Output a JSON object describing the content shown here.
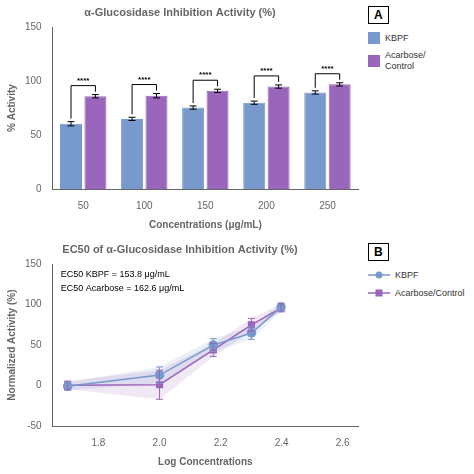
{
  "chart_data": [
    {
      "type": "bar",
      "title": "α-Glucosidase Inhibition Activity (%)",
      "xlabel": "Concentrations (μg/mL)",
      "ylabel": "% Activity",
      "categories": [
        "50",
        "100",
        "150",
        "200",
        "250"
      ],
      "series": [
        {
          "name": "KBPF",
          "color": "#7799CC",
          "values": [
            60.5,
            65.0,
            75.5,
            80.0,
            89.5
          ],
          "errors": [
            2.0,
            1.5,
            1.5,
            1.5,
            1.5
          ]
        },
        {
          "name": "Acarbose/\nControl",
          "color": "#9966BB",
          "values": [
            86.0,
            86.5,
            91.0,
            95.0,
            97.0
          ],
          "errors": [
            1.5,
            2.0,
            1.5,
            1.5,
            1.5
          ]
        }
      ],
      "significance": [
        "****",
        "****",
        "****",
        "****",
        "****"
      ],
      "panel_label": "A",
      "ylim": [
        0,
        150
      ],
      "yticks": [
        0,
        50,
        100,
        150
      ],
      "grid": false,
      "legend": "upper right"
    },
    {
      "type": "line",
      "title": "EC50 of α-Glucosidase Inhibition Activity (%)",
      "xlabel": "Log Concentrations",
      "ylabel": "Normalized Activity (%)",
      "x": [
        1.699,
        2.0,
        2.176,
        2.301,
        2.398
      ],
      "series": [
        {
          "name": "KBPF",
          "color": "#7799CC",
          "marker": "circle",
          "values": [
            -1.0,
            13.0,
            50.0,
            65.0,
            97.0
          ],
          "errors": [
            5.0,
            10.0,
            8.0,
            8.0,
            5.0
          ]
        },
        {
          "name": "Acarbose/Control",
          "color": "#9966BB",
          "marker": "square",
          "values": [
            0.5,
            1.0,
            44.0,
            75.0,
            96.0
          ],
          "errors": [
            5.0,
            18.0,
            8.0,
            8.0,
            5.0
          ]
        }
      ],
      "annotations": [
        "EC50 KBPF = 153.8 μg/mL",
        "EC50 Acarbose = 162.6 μg/mL"
      ],
      "panel_label": "B",
      "xlim": [
        1.65,
        2.65
      ],
      "xticks": [
        1.8,
        {
          "value": 2.0,
          "label": "2.0"
        },
        2.2,
        2.4,
        2.6
      ],
      "ylim": [
        -50,
        150
      ],
      "yticks": [
        -50,
        0,
        50,
        100,
        150
      ],
      "grid": false,
      "legend": "upper right"
    }
  ]
}
